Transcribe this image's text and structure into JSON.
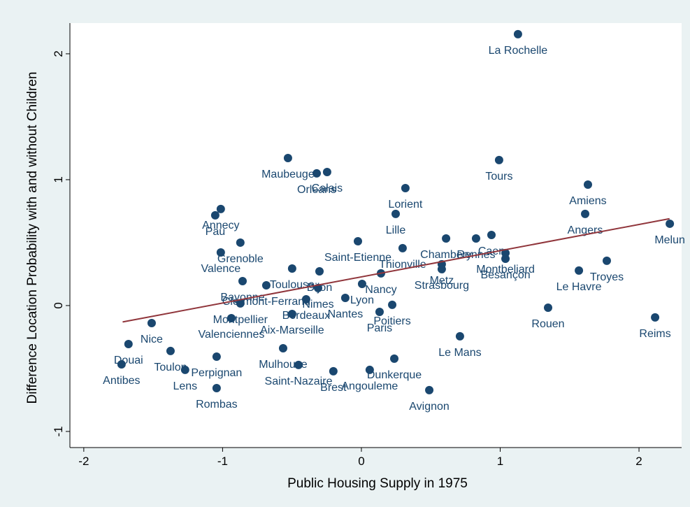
{
  "chart_data": {
    "type": "scatter",
    "xlabel": "Public Housing Supply in 1975",
    "ylabel": "Difference Location Probability with and without Children",
    "labels": [
      "La Rochelle",
      "Maubeuge",
      "Orleans",
      "Calais",
      "Tours",
      "Amiens",
      "Angers",
      "Melun",
      "Lorient",
      "Lille",
      "Annecy",
      "Pau",
      "Grenoble",
      "Valence",
      "Saint-Etienne",
      "Chambery",
      "Rennes",
      "Caen",
      "Thionville",
      "Montbeliard",
      "Besançon",
      "Metz",
      "Strasbourg",
      "Le Havre",
      "Troyes",
      "Bayonne",
      "Toulouse",
      "Dijon",
      "Clermont-Ferrand",
      "Nimes",
      "Bordeaux",
      "Nantes",
      "Lyon",
      "Nancy",
      "Montpellier",
      "Aix-Marseille",
      "Poitiers",
      "Paris",
      "Valenciennes",
      "Rouen",
      "Reims",
      "Le Mans",
      "Nice",
      "Douai",
      "Antibes",
      "Toulon",
      "Lens",
      "Perpignan",
      "Rombas",
      "Mulhouse",
      "Saint-Nazaire",
      "Brest",
      "Angouleme",
      "Dunkerque",
      "Avignon"
    ],
    "x": [
      1.128,
      -0.529,
      -0.322,
      -0.247,
      0.992,
      1.632,
      1.612,
      2.222,
      0.317,
      0.247,
      -1.013,
      -1.053,
      -0.872,
      -1.013,
      -0.025,
      0.61,
      0.826,
      0.937,
      0.297,
      1.038,
      1.038,
      0.579,
      0.579,
      1.567,
      1.768,
      -0.856,
      -0.499,
      -0.302,
      -0.685,
      -0.312,
      -0.398,
      -0.116,
      0.005,
      0.141,
      -0.872,
      -0.499,
      0.222,
      0.131,
      -0.937,
      1.345,
      2.116,
      0.71,
      -1.511,
      -1.678,
      -1.728,
      -1.375,
      -1.27,
      -1.043,
      -1.043,
      -0.564,
      -0.453,
      -0.202,
      0.06,
      0.237,
      0.489
    ],
    "values": [
      2.156,
      1.172,
      1.05,
      1.061,
      1.156,
      0.961,
      0.728,
      0.65,
      0.933,
      0.728,
      0.767,
      0.717,
      0.5,
      0.422,
      0.511,
      0.533,
      0.533,
      0.561,
      0.456,
      0.417,
      0.372,
      0.328,
      0.289,
      0.278,
      0.356,
      0.194,
      0.294,
      0.272,
      0.161,
      0.139,
      0.05,
      0.061,
      0.172,
      0.256,
      0.017,
      -0.067,
      0.006,
      -0.05,
      -0.1,
      -0.017,
      -0.094,
      -0.244,
      -0.139,
      -0.306,
      -0.467,
      -0.361,
      -0.511,
      -0.406,
      -0.656,
      -0.339,
      -0.472,
      -0.522,
      -0.511,
      -0.422,
      -0.672
    ],
    "color": "#1a476f",
    "fit_line": {
      "x": [
        -1.72,
        2.22
      ],
      "values": [
        -0.13,
        0.69
      ],
      "color": "#90353b"
    },
    "xlim": [
      -2.1,
      2.307
    ],
    "ylim": [
      -1.128,
      2.244
    ],
    "xticks": [
      -2,
      -1,
      0,
      1,
      2
    ],
    "yticks": [
      -1,
      0,
      1,
      2
    ]
  }
}
